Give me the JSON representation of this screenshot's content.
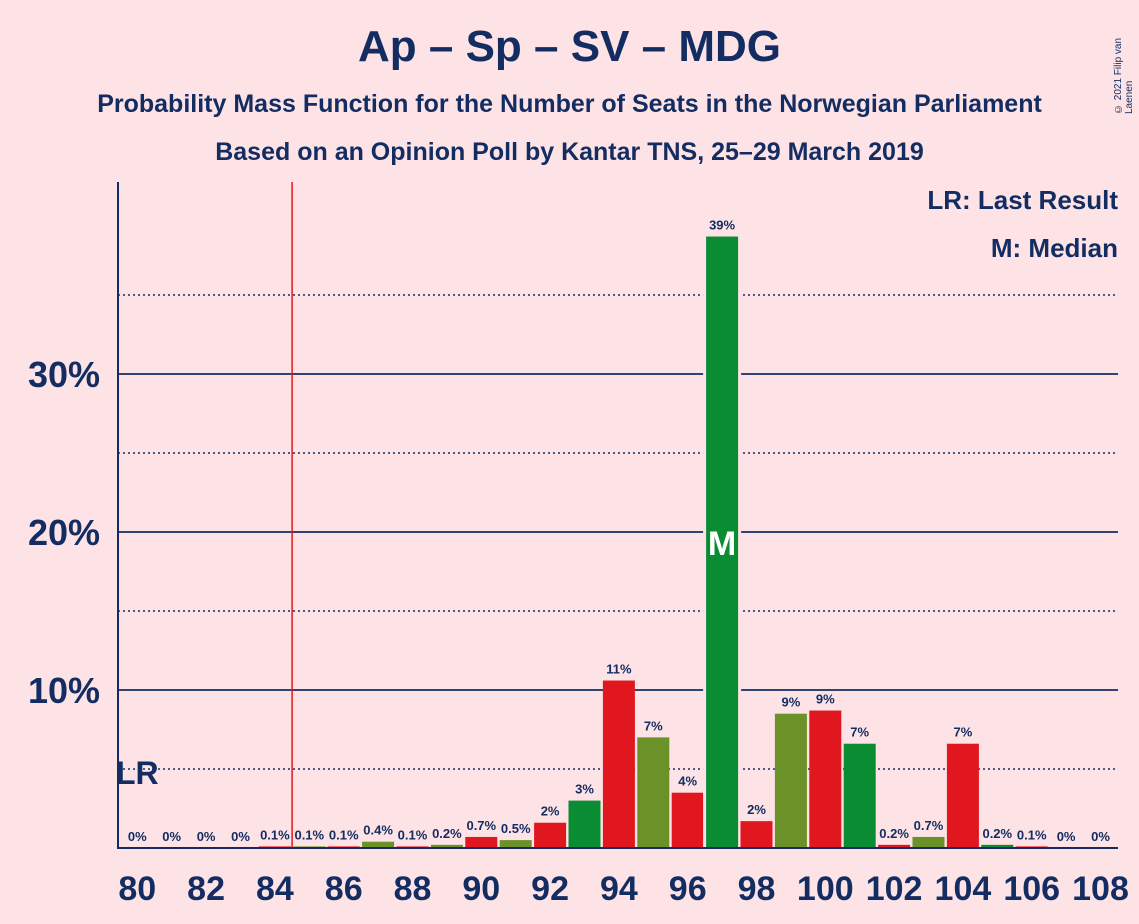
{
  "title": "Ap – Sp – SV – MDG",
  "subtitle1": "Probability Mass Function for the Number of Seats in the Norwegian Parliament",
  "subtitle2": "Based on an Opinion Poll by Kantar TNS, 25–29 March 2019",
  "copyright": "© 2021 Filip van Laenen",
  "legend": {
    "last_result": "LR: Last Result",
    "median": "M: Median"
  },
  "markers": {
    "lr_text": "LR",
    "median_text": "M",
    "last_result_seat": 84.5,
    "median_seat": 97
  },
  "colors": {
    "background": "#fde3e5",
    "text": "#132d63",
    "red": "#e0171f",
    "olive": "#6b9228",
    "green": "#0a8c32",
    "last_result_line": "#e0171f"
  },
  "chart_data": {
    "type": "bar",
    "xlim": [
      80,
      108
    ],
    "ylim": [
      0,
      42
    ],
    "yticks_major": [
      10,
      20,
      30
    ],
    "ytick_labels": [
      "10%",
      "20%",
      "30%"
    ],
    "yticks_minor": [
      5,
      15,
      25,
      35
    ],
    "xticks": [
      80,
      82,
      84,
      86,
      88,
      90,
      92,
      94,
      96,
      98,
      100,
      102,
      104,
      106,
      108
    ],
    "grid": true,
    "legend_position": "top-right",
    "bars": [
      {
        "seats": 80,
        "value": 0,
        "label": "0%",
        "color": "red"
      },
      {
        "seats": 81,
        "value": 0,
        "label": "0%",
        "color": "olive"
      },
      {
        "seats": 82,
        "value": 0,
        "label": "0%",
        "color": "red"
      },
      {
        "seats": 83,
        "value": 0,
        "label": "0%",
        "color": "olive"
      },
      {
        "seats": 84,
        "value": 0.1,
        "label": "0.1%",
        "color": "red"
      },
      {
        "seats": 85,
        "value": 0.1,
        "label": "0.1%",
        "color": "olive"
      },
      {
        "seats": 86,
        "value": 0.1,
        "label": "0.1%",
        "color": "red"
      },
      {
        "seats": 87,
        "value": 0.4,
        "label": "0.4%",
        "color": "olive"
      },
      {
        "seats": 88,
        "value": 0.1,
        "label": "0.1%",
        "color": "red"
      },
      {
        "seats": 89,
        "value": 0.2,
        "label": "0.2%",
        "color": "olive"
      },
      {
        "seats": 90,
        "value": 0.7,
        "label": "0.7%",
        "color": "red"
      },
      {
        "seats": 91,
        "value": 0.5,
        "label": "0.5%",
        "color": "olive"
      },
      {
        "seats": 92,
        "value": 1.6,
        "label": "2%",
        "color": "red"
      },
      {
        "seats": 93,
        "value": 3.0,
        "label": "3%",
        "color": "green"
      },
      {
        "seats": 94,
        "value": 10.6,
        "label": "11%",
        "color": "red"
      },
      {
        "seats": 95,
        "value": 7.0,
        "label": "7%",
        "color": "olive"
      },
      {
        "seats": 96,
        "value": 3.5,
        "label": "4%",
        "color": "red"
      },
      {
        "seats": 97,
        "value": 38.7,
        "label": "39%",
        "color": "green"
      },
      {
        "seats": 98,
        "value": 1.7,
        "label": "2%",
        "color": "red"
      },
      {
        "seats": 99,
        "value": 8.5,
        "label": "9%",
        "color": "olive"
      },
      {
        "seats": 100,
        "value": 8.7,
        "label": "9%",
        "color": "red"
      },
      {
        "seats": 101,
        "value": 6.6,
        "label": "7%",
        "color": "green"
      },
      {
        "seats": 102,
        "value": 0.2,
        "label": "0.2%",
        "color": "red"
      },
      {
        "seats": 103,
        "value": 0.7,
        "label": "0.7%",
        "color": "olive"
      },
      {
        "seats": 104,
        "value": 6.6,
        "label": "7%",
        "color": "red"
      },
      {
        "seats": 105,
        "value": 0.2,
        "label": "0.2%",
        "color": "green"
      },
      {
        "seats": 106,
        "value": 0.1,
        "label": "0.1%",
        "color": "red"
      },
      {
        "seats": 107,
        "value": 0,
        "label": "0%",
        "color": "olive"
      },
      {
        "seats": 108,
        "value": 0,
        "label": "0%",
        "color": "red"
      }
    ]
  }
}
